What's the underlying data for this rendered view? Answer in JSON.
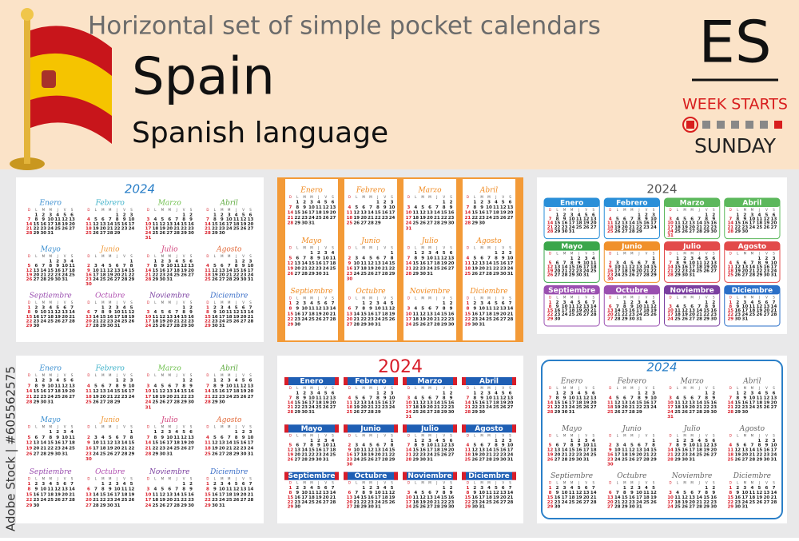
{
  "header": {
    "title": "Horizontal set of simple pocket calendars",
    "country": "Spain",
    "language": "Spanish language",
    "code": "ES",
    "week_starts_label": "WEEK STARTS",
    "week_starts_day": "SUNDAY"
  },
  "year": "2024",
  "weekdays": [
    "D",
    "L",
    "M",
    "M",
    "J",
    "V",
    "S"
  ],
  "months": [
    {
      "name": "Enero",
      "days": [
        null,
        1,
        2,
        3,
        4,
        5,
        6,
        7,
        8,
        9,
        10,
        11,
        12,
        13,
        14,
        15,
        16,
        17,
        18,
        19,
        20,
        21,
        22,
        23,
        24,
        25,
        26,
        27,
        28,
        29,
        30,
        31
      ]
    },
    {
      "name": "Febrero",
      "days": [
        null,
        null,
        null,
        null,
        1,
        2,
        3,
        4,
        5,
        6,
        7,
        8,
        9,
        10,
        11,
        12,
        13,
        14,
        15,
        16,
        17,
        18,
        19,
        20,
        21,
        22,
        23,
        24,
        25,
        26,
        27,
        28,
        29
      ]
    },
    {
      "name": "Marzo",
      "days": [
        null,
        null,
        null,
        null,
        null,
        1,
        2,
        3,
        4,
        5,
        6,
        7,
        8,
        9,
        10,
        11,
        12,
        13,
        14,
        15,
        16,
        17,
        18,
        19,
        20,
        21,
        22,
        23,
        24,
        25,
        26,
        27,
        28,
        29,
        30,
        31
      ]
    },
    {
      "name": "Abril",
      "days": [
        null,
        1,
        2,
        3,
        4,
        5,
        6,
        7,
        8,
        9,
        10,
        11,
        12,
        13,
        14,
        15,
        16,
        17,
        18,
        19,
        20,
        21,
        22,
        23,
        24,
        25,
        26,
        27,
        28,
        29,
        30
      ]
    },
    {
      "name": "Mayo",
      "days": [
        null,
        null,
        null,
        1,
        2,
        3,
        4,
        5,
        6,
        7,
        8,
        9,
        10,
        11,
        12,
        13,
        14,
        15,
        16,
        17,
        18,
        19,
        20,
        21,
        22,
        23,
        24,
        25,
        26,
        27,
        28,
        29,
        30,
        31
      ]
    },
    {
      "name": "Junio",
      "days": [
        null,
        null,
        null,
        null,
        null,
        null,
        1,
        2,
        3,
        4,
        5,
        6,
        7,
        8,
        9,
        10,
        11,
        12,
        13,
        14,
        15,
        16,
        17,
        18,
        19,
        20,
        21,
        22,
        23,
        24,
        25,
        26,
        27,
        28,
        29,
        30
      ]
    },
    {
      "name": "Julio",
      "days": [
        null,
        1,
        2,
        3,
        4,
        5,
        6,
        7,
        8,
        9,
        10,
        11,
        12,
        13,
        14,
        15,
        16,
        17,
        18,
        19,
        20,
        21,
        22,
        23,
        24,
        25,
        26,
        27,
        28,
        29,
        30,
        31
      ]
    },
    {
      "name": "Agosto",
      "days": [
        null,
        null,
        null,
        null,
        1,
        2,
        3,
        4,
        5,
        6,
        7,
        8,
        9,
        10,
        11,
        12,
        13,
        14,
        15,
        16,
        17,
        18,
        19,
        20,
        21,
        22,
        23,
        24,
        25,
        26,
        27,
        28,
        29,
        30,
        31
      ]
    },
    {
      "name": "Septiembre",
      "days": [
        1,
        2,
        3,
        4,
        5,
        6,
        7,
        8,
        9,
        10,
        11,
        12,
        13,
        14,
        15,
        16,
        17,
        18,
        19,
        20,
        21,
        22,
        23,
        24,
        25,
        26,
        27,
        28,
        29,
        30
      ]
    },
    {
      "name": "Octubre",
      "days": [
        null,
        null,
        1,
        2,
        3,
        4,
        5,
        6,
        7,
        8,
        9,
        10,
        11,
        12,
        13,
        14,
        15,
        16,
        17,
        18,
        19,
        20,
        21,
        22,
        23,
        24,
        25,
        26,
        27,
        28,
        29,
        30,
        31
      ]
    },
    {
      "name": "Noviembre",
      "days": [
        null,
        null,
        null,
        null,
        null,
        1,
        2,
        3,
        4,
        5,
        6,
        7,
        8,
        9,
        10,
        11,
        12,
        13,
        14,
        15,
        16,
        17,
        18,
        19,
        20,
        21,
        22,
        23,
        24,
        25,
        26,
        27,
        28,
        29,
        30
      ]
    },
    {
      "name": "Diciembre",
      "days": [
        1,
        2,
        3,
        4,
        5,
        6,
        7,
        8,
        9,
        10,
        11,
        12,
        13,
        14,
        15,
        16,
        17,
        18,
        19,
        20,
        21,
        22,
        23,
        24,
        25,
        26,
        27,
        28,
        29,
        30,
        31
      ]
    }
  ],
  "watermark": "Adobe Stock | #605562575"
}
